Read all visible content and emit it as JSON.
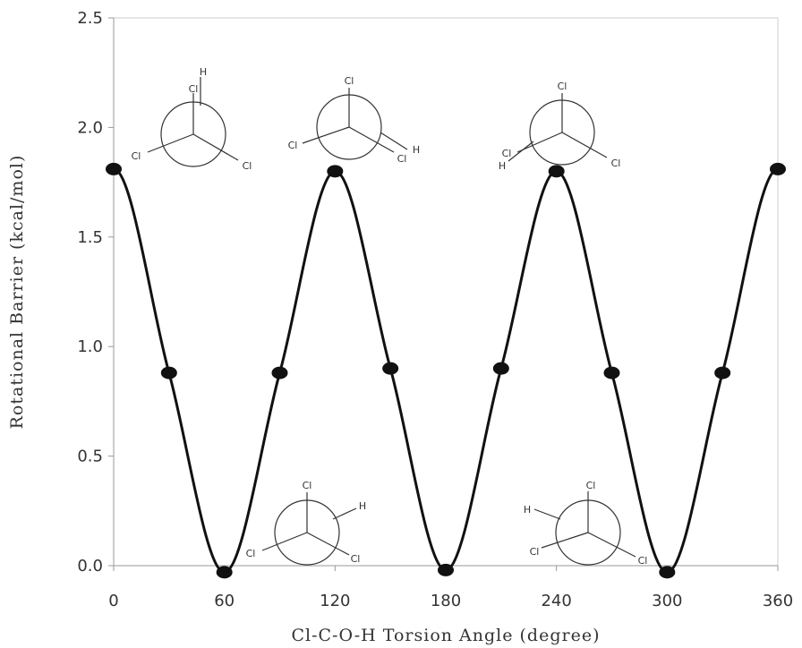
{
  "chart_data": {
    "type": "line",
    "title": "",
    "xlabel": "Cl-C-O-H Torsion Angle (degree)",
    "ylabel": "Rotational Barrier (kcal/mol)",
    "xlim": [
      0,
      360
    ],
    "ylim": [
      0,
      2.5
    ],
    "xticks": [
      0,
      60,
      120,
      180,
      240,
      300,
      360
    ],
    "yticks": [
      "0.0",
      "0.5",
      "1.0",
      "1.5",
      "2.0",
      "2.5"
    ],
    "series": [
      {
        "x": [
          0,
          30,
          60,
          90,
          120,
          150,
          180,
          210,
          240,
          270,
          300,
          330,
          360
        ],
        "y": [
          1.81,
          0.88,
          -0.03,
          0.88,
          1.8,
          0.9,
          -0.02,
          0.9,
          1.8,
          0.88,
          -0.03,
          0.88,
          1.81
        ]
      }
    ],
    "grid": false,
    "legend": "none",
    "color": "#111111",
    "insets": [
      {
        "labels": [
          "H",
          "Cl",
          "Cl",
          "Cl"
        ]
      },
      {
        "labels": [
          "Cl",
          "Cl",
          "Cl",
          "H"
        ]
      },
      {
        "labels": [
          "Cl",
          "Cl",
          "H",
          "Cl"
        ]
      },
      {
        "labels": [
          "Cl",
          "H",
          "Cl",
          "Cl"
        ]
      },
      {
        "labels": [
          "H",
          "Cl",
          "Cl",
          "Cl"
        ]
      }
    ]
  }
}
